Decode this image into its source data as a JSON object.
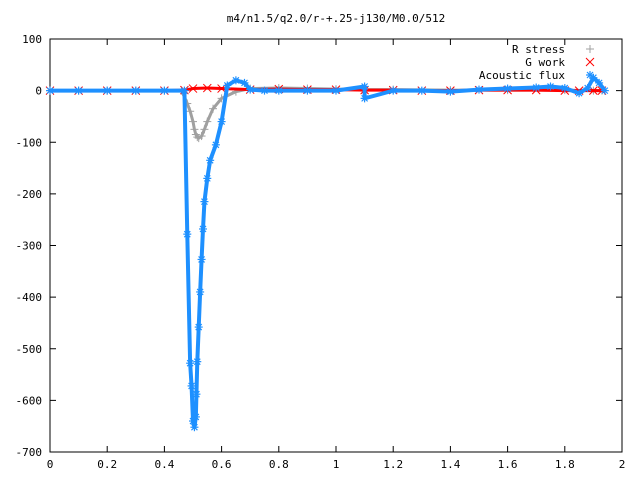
{
  "chart_data": {
    "type": "scatter",
    "title": "m4/n1.5/q2.0/r-+.25-j130/M0.0/512",
    "xlabel": "",
    "ylabel": "",
    "xlim": [
      0,
      2
    ],
    "ylim": [
      -700,
      100
    ],
    "x_ticks": [
      "0",
      "0.2",
      "0.4",
      "0.6",
      "0.8",
      "1",
      "1.2",
      "1.4",
      "1.6",
      "1.8",
      "2"
    ],
    "y_ticks": [
      "100",
      "0",
      "-100",
      "-200",
      "-300",
      "-400",
      "-500",
      "-600",
      "-700"
    ],
    "grid": false,
    "legend_position": "top-right",
    "series": [
      {
        "name": "R stress",
        "marker": "plus",
        "color": "#a0a0a0",
        "x": [
          0,
          0.1,
          0.2,
          0.3,
          0.4,
          0.46,
          0.48,
          0.49,
          0.5,
          0.505,
          0.51,
          0.515,
          0.52,
          0.53,
          0.54,
          0.55,
          0.57,
          0.6,
          0.65,
          0.7,
          0.8,
          0.9,
          1.0,
          1.1,
          1.2,
          1.4,
          1.6,
          1.8,
          1.9,
          1.93
        ],
        "y": [
          0,
          0,
          0,
          0,
          0,
          0,
          -25,
          -40,
          -60,
          -75,
          -85,
          -90,
          -92,
          -88,
          -75,
          -60,
          -35,
          -15,
          -2,
          4,
          5,
          4,
          3,
          2,
          2,
          1,
          1,
          1,
          0,
          0
        ]
      },
      {
        "name": "G work",
        "marker": "cross",
        "color": "#ff0000",
        "x": [
          0,
          0.1,
          0.2,
          0.3,
          0.4,
          0.47,
          0.5,
          0.55,
          0.6,
          0.7,
          0.8,
          0.9,
          1.0,
          1.1,
          1.2,
          1.3,
          1.4,
          1.5,
          1.6,
          1.7,
          1.8,
          1.85,
          1.9,
          1.93
        ],
        "y": [
          0,
          0,
          0,
          0,
          0,
          1,
          4,
          5,
          4,
          2,
          3,
          2,
          2,
          1,
          1,
          0,
          0,
          1,
          1,
          1,
          0,
          0,
          0,
          0
        ]
      },
      {
        "name": "Acoustic flux",
        "marker": "star",
        "color": "#1e90ff",
        "x": [
          0,
          0.1,
          0.2,
          0.3,
          0.4,
          0.47,
          0.48,
          0.49,
          0.495,
          0.5,
          0.505,
          0.51,
          0.512,
          0.515,
          0.52,
          0.525,
          0.53,
          0.535,
          0.54,
          0.55,
          0.56,
          0.58,
          0.6,
          0.62,
          0.65,
          0.68,
          0.7,
          0.75,
          0.8,
          0.9,
          1.0,
          1.1,
          1.1,
          1.2,
          1.3,
          1.4,
          1.5,
          1.6,
          1.7,
          1.75,
          1.8,
          1.85,
          1.88,
          1.9,
          1.92,
          1.94
        ],
        "y": [
          0,
          0,
          0,
          0,
          0,
          0,
          -278,
          -528,
          -572,
          -640,
          -652,
          -632,
          -588,
          -525,
          -458,
          -390,
          -327,
          -268,
          -215,
          -170,
          -135,
          -105,
          -60,
          10,
          20,
          15,
          2,
          0,
          0,
          0,
          0,
          8,
          -15,
          0,
          0,
          -2,
          2,
          4,
          6,
          8,
          5,
          -5,
          5,
          25,
          15,
          0
        ]
      }
    ]
  }
}
